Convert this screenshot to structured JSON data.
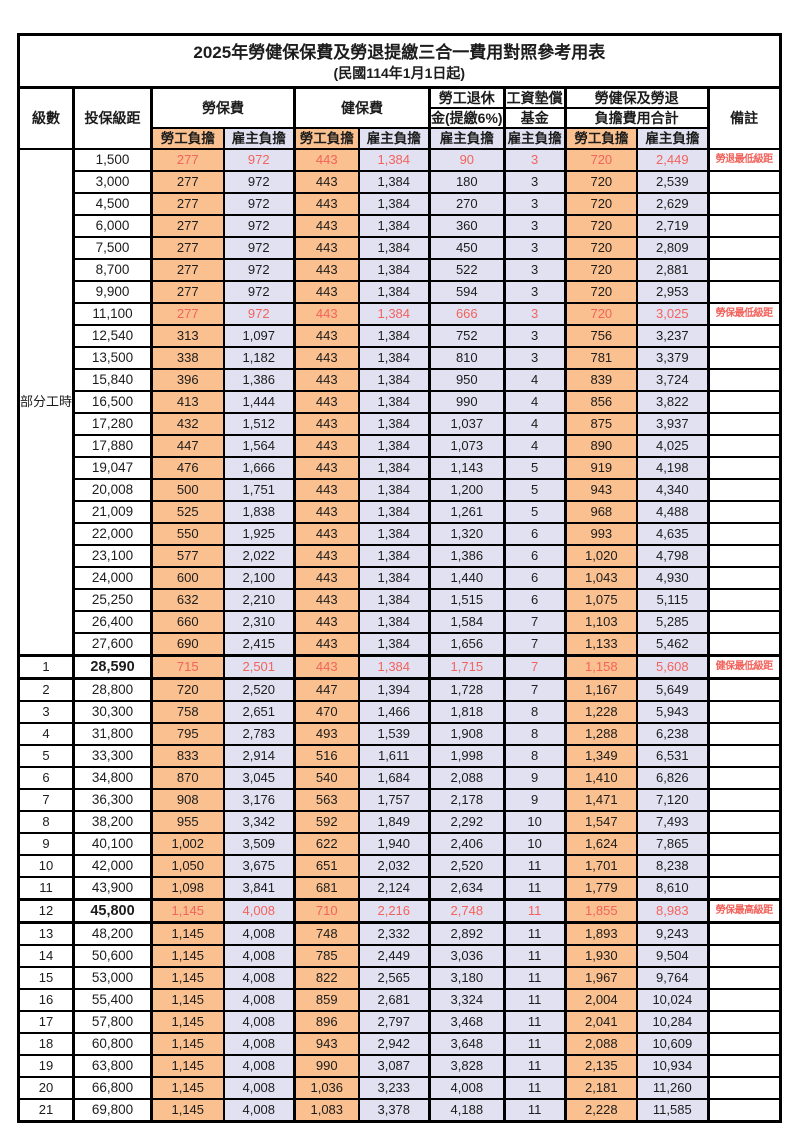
{
  "title": "2025年勞健保保費及勞退提繳三合一費用對照參考用表",
  "subtitle": "(民國114年1月1日起)",
  "accent_colors": {
    "employee_fill": "#fac08f",
    "employer_fill": "#e2e1f2",
    "highlight_text": "#f2635c",
    "border": "#000000"
  },
  "header": {
    "level": "級數",
    "bracket": "投保級距",
    "labor_insurance": "勞保費",
    "health_insurance": "健保費",
    "pension_line1": "勞工退休",
    "pension_line2": "金(提繳6%)",
    "wage_fund_line1": "工資墊償",
    "wage_fund_line2": "基金",
    "total_line1": "勞健保及勞退",
    "total_line2": "負擔費用合計",
    "remark": "備註",
    "employee": "勞工負擔",
    "employer": "雇主負擔"
  },
  "part_time_label": "部分工時",
  "table": {
    "rows": [
      {
        "level": "",
        "bracket": "1,500",
        "values": [
          "277",
          "972",
          "443",
          "1,384",
          "90",
          "3",
          "720",
          "2,449"
        ],
        "remark": "勞退最低級距",
        "red": true,
        "bold": false
      },
      {
        "level": "",
        "bracket": "3,000",
        "values": [
          "277",
          "972",
          "443",
          "1,384",
          "180",
          "3",
          "720",
          "2,539"
        ],
        "remark": "",
        "red": false,
        "bold": false
      },
      {
        "level": "",
        "bracket": "4,500",
        "values": [
          "277",
          "972",
          "443",
          "1,384",
          "270",
          "3",
          "720",
          "2,629"
        ],
        "remark": "",
        "red": false,
        "bold": false
      },
      {
        "level": "",
        "bracket": "6,000",
        "values": [
          "277",
          "972",
          "443",
          "1,384",
          "360",
          "3",
          "720",
          "2,719"
        ],
        "remark": "",
        "red": false,
        "bold": false
      },
      {
        "level": "",
        "bracket": "7,500",
        "values": [
          "277",
          "972",
          "443",
          "1,384",
          "450",
          "3",
          "720",
          "2,809"
        ],
        "remark": "",
        "red": false,
        "bold": false
      },
      {
        "level": "",
        "bracket": "8,700",
        "values": [
          "277",
          "972",
          "443",
          "1,384",
          "522",
          "3",
          "720",
          "2,881"
        ],
        "remark": "",
        "red": false,
        "bold": false
      },
      {
        "level": "",
        "bracket": "9,900",
        "values": [
          "277",
          "972",
          "443",
          "1,384",
          "594",
          "3",
          "720",
          "2,953"
        ],
        "remark": "",
        "red": false,
        "bold": false
      },
      {
        "level": "",
        "bracket": "11,100",
        "values": [
          "277",
          "972",
          "443",
          "1,384",
          "666",
          "3",
          "720",
          "3,025"
        ],
        "remark": "勞保最低級距",
        "red": true,
        "bold": false
      },
      {
        "level": "",
        "bracket": "12,540",
        "values": [
          "313",
          "1,097",
          "443",
          "1,384",
          "752",
          "3",
          "756",
          "3,237"
        ],
        "remark": "",
        "red": false,
        "bold": false
      },
      {
        "level": "",
        "bracket": "13,500",
        "values": [
          "338",
          "1,182",
          "443",
          "1,384",
          "810",
          "3",
          "781",
          "3,379"
        ],
        "remark": "",
        "red": false,
        "bold": false
      },
      {
        "level": "",
        "bracket": "15,840",
        "values": [
          "396",
          "1,386",
          "443",
          "1,384",
          "950",
          "4",
          "839",
          "3,724"
        ],
        "remark": "",
        "red": false,
        "bold": false
      },
      {
        "level": "",
        "bracket": "16,500",
        "values": [
          "413",
          "1,444",
          "443",
          "1,384",
          "990",
          "4",
          "856",
          "3,822"
        ],
        "remark": "",
        "red": false,
        "bold": false
      },
      {
        "level": "",
        "bracket": "17,280",
        "values": [
          "432",
          "1,512",
          "443",
          "1,384",
          "1,037",
          "4",
          "875",
          "3,937"
        ],
        "remark": "",
        "red": false,
        "bold": false
      },
      {
        "level": "",
        "bracket": "17,880",
        "values": [
          "447",
          "1,564",
          "443",
          "1,384",
          "1,073",
          "4",
          "890",
          "4,025"
        ],
        "remark": "",
        "red": false,
        "bold": false
      },
      {
        "level": "",
        "bracket": "19,047",
        "values": [
          "476",
          "1,666",
          "443",
          "1,384",
          "1,143",
          "5",
          "919",
          "4,198"
        ],
        "remark": "",
        "red": false,
        "bold": false
      },
      {
        "level": "",
        "bracket": "20,008",
        "values": [
          "500",
          "1,751",
          "443",
          "1,384",
          "1,200",
          "5",
          "943",
          "4,340"
        ],
        "remark": "",
        "red": false,
        "bold": false
      },
      {
        "level": "",
        "bracket": "21,009",
        "values": [
          "525",
          "1,838",
          "443",
          "1,384",
          "1,261",
          "5",
          "968",
          "4,488"
        ],
        "remark": "",
        "red": false,
        "bold": false
      },
      {
        "level": "",
        "bracket": "22,000",
        "values": [
          "550",
          "1,925",
          "443",
          "1,384",
          "1,320",
          "6",
          "993",
          "4,635"
        ],
        "remark": "",
        "red": false,
        "bold": false
      },
      {
        "level": "",
        "bracket": "23,100",
        "values": [
          "577",
          "2,022",
          "443",
          "1,384",
          "1,386",
          "6",
          "1,020",
          "4,798"
        ],
        "remark": "",
        "red": false,
        "bold": false
      },
      {
        "level": "",
        "bracket": "24,000",
        "values": [
          "600",
          "2,100",
          "443",
          "1,384",
          "1,440",
          "6",
          "1,043",
          "4,930"
        ],
        "remark": "",
        "red": false,
        "bold": false
      },
      {
        "level": "",
        "bracket": "25,250",
        "values": [
          "632",
          "2,210",
          "443",
          "1,384",
          "1,515",
          "6",
          "1,075",
          "5,115"
        ],
        "remark": "",
        "red": false,
        "bold": false
      },
      {
        "level": "",
        "bracket": "26,400",
        "values": [
          "660",
          "2,310",
          "443",
          "1,384",
          "1,584",
          "7",
          "1,103",
          "5,285"
        ],
        "remark": "",
        "red": false,
        "bold": false
      },
      {
        "level": "",
        "bracket": "27,600",
        "values": [
          "690",
          "2,415",
          "443",
          "1,384",
          "1,656",
          "7",
          "1,133",
          "5,462"
        ],
        "remark": "",
        "red": false,
        "bold": false
      },
      {
        "level": "1",
        "bracket": "28,590",
        "values": [
          "715",
          "2,501",
          "443",
          "1,384",
          "1,715",
          "7",
          "1,158",
          "5,608"
        ],
        "remark": "健保最低級距",
        "red": true,
        "bold": true
      },
      {
        "level": "2",
        "bracket": "28,800",
        "values": [
          "720",
          "2,520",
          "447",
          "1,394",
          "1,728",
          "7",
          "1,167",
          "5,649"
        ],
        "remark": "",
        "red": false,
        "bold": false
      },
      {
        "level": "3",
        "bracket": "30,300",
        "values": [
          "758",
          "2,651",
          "470",
          "1,466",
          "1,818",
          "8",
          "1,228",
          "5,943"
        ],
        "remark": "",
        "red": false,
        "bold": false
      },
      {
        "level": "4",
        "bracket": "31,800",
        "values": [
          "795",
          "2,783",
          "493",
          "1,539",
          "1,908",
          "8",
          "1,288",
          "6,238"
        ],
        "remark": "",
        "red": false,
        "bold": false
      },
      {
        "level": "5",
        "bracket": "33,300",
        "values": [
          "833",
          "2,914",
          "516",
          "1,611",
          "1,998",
          "8",
          "1,349",
          "6,531"
        ],
        "remark": "",
        "red": false,
        "bold": false
      },
      {
        "level": "6",
        "bracket": "34,800",
        "values": [
          "870",
          "3,045",
          "540",
          "1,684",
          "2,088",
          "9",
          "1,410",
          "6,826"
        ],
        "remark": "",
        "red": false,
        "bold": false
      },
      {
        "level": "7",
        "bracket": "36,300",
        "values": [
          "908",
          "3,176",
          "563",
          "1,757",
          "2,178",
          "9",
          "1,471",
          "7,120"
        ],
        "remark": "",
        "red": false,
        "bold": false
      },
      {
        "level": "8",
        "bracket": "38,200",
        "values": [
          "955",
          "3,342",
          "592",
          "1,849",
          "2,292",
          "10",
          "1,547",
          "7,493"
        ],
        "remark": "",
        "red": false,
        "bold": false
      },
      {
        "level": "9",
        "bracket": "40,100",
        "values": [
          "1,002",
          "3,509",
          "622",
          "1,940",
          "2,406",
          "10",
          "1,624",
          "7,865"
        ],
        "remark": "",
        "red": false,
        "bold": false
      },
      {
        "level": "10",
        "bracket": "42,000",
        "values": [
          "1,050",
          "3,675",
          "651",
          "2,032",
          "2,520",
          "11",
          "1,701",
          "8,238"
        ],
        "remark": "",
        "red": false,
        "bold": false
      },
      {
        "level": "11",
        "bracket": "43,900",
        "values": [
          "1,098",
          "3,841",
          "681",
          "2,124",
          "2,634",
          "11",
          "1,779",
          "8,610"
        ],
        "remark": "",
        "red": false,
        "bold": false
      },
      {
        "level": "12",
        "bracket": "45,800",
        "values": [
          "1,145",
          "4,008",
          "710",
          "2,216",
          "2,748",
          "11",
          "1,855",
          "8,983"
        ],
        "remark": "勞保最高級距",
        "red": true,
        "bold": true
      },
      {
        "level": "13",
        "bracket": "48,200",
        "values": [
          "1,145",
          "4,008",
          "748",
          "2,332",
          "2,892",
          "11",
          "1,893",
          "9,243"
        ],
        "remark": "",
        "red": false,
        "bold": false
      },
      {
        "level": "14",
        "bracket": "50,600",
        "values": [
          "1,145",
          "4,008",
          "785",
          "2,449",
          "3,036",
          "11",
          "1,930",
          "9,504"
        ],
        "remark": "",
        "red": false,
        "bold": false
      },
      {
        "level": "15",
        "bracket": "53,000",
        "values": [
          "1,145",
          "4,008",
          "822",
          "2,565",
          "3,180",
          "11",
          "1,967",
          "9,764"
        ],
        "remark": "",
        "red": false,
        "bold": false
      },
      {
        "level": "16",
        "bracket": "55,400",
        "values": [
          "1,145",
          "4,008",
          "859",
          "2,681",
          "3,324",
          "11",
          "2,004",
          "10,024"
        ],
        "remark": "",
        "red": false,
        "bold": false
      },
      {
        "level": "17",
        "bracket": "57,800",
        "values": [
          "1,145",
          "4,008",
          "896",
          "2,797",
          "3,468",
          "11",
          "2,041",
          "10,284"
        ],
        "remark": "",
        "red": false,
        "bold": false
      },
      {
        "level": "18",
        "bracket": "60,800",
        "values": [
          "1,145",
          "4,008",
          "943",
          "2,942",
          "3,648",
          "11",
          "2,088",
          "10,609"
        ],
        "remark": "",
        "red": false,
        "bold": false
      },
      {
        "level": "19",
        "bracket": "63,800",
        "values": [
          "1,145",
          "4,008",
          "990",
          "3,087",
          "3,828",
          "11",
          "2,135",
          "10,934"
        ],
        "remark": "",
        "red": false,
        "bold": false
      },
      {
        "level": "20",
        "bracket": "66,800",
        "values": [
          "1,145",
          "4,008",
          "1,036",
          "3,233",
          "4,008",
          "11",
          "2,181",
          "11,260"
        ],
        "remark": "",
        "red": false,
        "bold": false
      },
      {
        "level": "21",
        "bracket": "69,800",
        "values": [
          "1,145",
          "4,008",
          "1,083",
          "3,378",
          "4,188",
          "11",
          "2,228",
          "11,585"
        ],
        "remark": "",
        "red": false,
        "bold": false
      }
    ]
  }
}
